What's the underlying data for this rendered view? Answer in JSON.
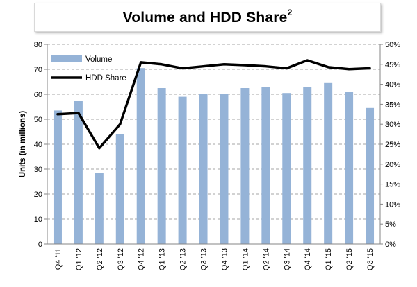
{
  "chart_data": {
    "type": "bar",
    "title": "Volume and HDD Share",
    "title_superscript": "2",
    "categories": [
      "Q4 '11",
      "Q1 '12",
      "Q2 '12",
      "Q3 '12",
      "Q4 '12",
      "Q1 '13",
      "Q2 '13",
      "Q3 '13",
      "Q4 '13",
      "Q1 '14",
      "Q2 '14",
      "Q3 '14",
      "Q4 '14",
      "Q1 '15",
      "Q2 '15",
      "Q3 '15"
    ],
    "series": [
      {
        "name": "Volume",
        "type": "bar",
        "axis": "left",
        "color": "#95b3d7",
        "values": [
          53.5,
          57.5,
          28.5,
          44,
          70.5,
          62.5,
          59,
          60,
          60,
          62.5,
          63,
          60.5,
          63,
          64.5,
          61,
          54.5
        ]
      },
      {
        "name": "HDD Share",
        "type": "line",
        "axis": "right",
        "color": "#000000",
        "values": [
          32.5,
          32.8,
          24.0,
          30.0,
          45.5,
          45.0,
          44.0,
          44.5,
          45.0,
          44.8,
          44.5,
          44.0,
          46.0,
          44.3,
          43.8,
          44.0
        ]
      }
    ],
    "ylabel": "Units (in millions)",
    "ylim": [
      0,
      80
    ],
    "yticks": [
      0,
      10,
      20,
      30,
      40,
      50,
      60,
      70,
      80
    ],
    "y2lim": [
      0,
      50
    ],
    "y2ticks": [
      "0%",
      "5%",
      "10%",
      "15%",
      "20%",
      "25%",
      "30%",
      "35%",
      "40%",
      "45%",
      "50%"
    ],
    "grid": true,
    "legend_position": "top-left"
  }
}
